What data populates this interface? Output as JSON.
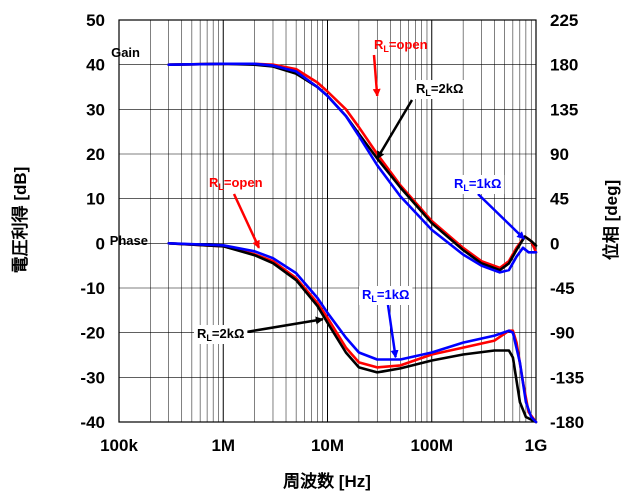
{
  "chart_data": {
    "type": "line",
    "title": "",
    "xlabel": "周波数 [Hz]",
    "ylabel_left": "電圧利得 [dB]",
    "ylabel_right": "位相 [deg]",
    "x_scale": "log",
    "xlim": [
      100000,
      1000000000
    ],
    "x_tick_labels": [
      "100k",
      "1M",
      "10M",
      "100M",
      "1G"
    ],
    "ylim_left": [
      -40,
      50
    ],
    "y_ticks_left": [
      "50",
      "40",
      "30",
      "20",
      "10",
      "0",
      "-10",
      "-20",
      "-30",
      "-40"
    ],
    "ylim_right": [
      -180,
      225
    ],
    "y_ticks_right": [
      "225",
      "180",
      "135",
      "90",
      "45",
      "0",
      "-45",
      "-90",
      "-135",
      "-180"
    ],
    "grid": true,
    "series": [
      {
        "group": "Gain",
        "axis": "left",
        "color": "#ff0000",
        "points": [
          [
            300000,
            40
          ],
          [
            1000000,
            40.2
          ],
          [
            2000000,
            40.2
          ],
          [
            3000000,
            40
          ],
          [
            5000000,
            39
          ],
          [
            8000000,
            36
          ],
          [
            10000000,
            34
          ],
          [
            15000000,
            30
          ],
          [
            20000000,
            26
          ],
          [
            30000000,
            20
          ],
          [
            50000000,
            13
          ],
          [
            100000000,
            5
          ],
          [
            200000000,
            -1
          ],
          [
            300000000,
            -4
          ],
          [
            450000000,
            -5.5
          ],
          [
            550000000,
            -4
          ],
          [
            650000000,
            -1
          ],
          [
            780000000,
            1.5
          ],
          [
            900000000,
            0.5
          ],
          [
            1000000000,
            -2
          ]
        ]
      },
      {
        "group": "Gain",
        "axis": "left",
        "color": "#000000",
        "points": [
          [
            300000,
            40
          ],
          [
            1000000,
            40.2
          ],
          [
            2000000,
            40
          ],
          [
            3000000,
            39.6
          ],
          [
            5000000,
            38
          ],
          [
            8000000,
            35
          ],
          [
            10000000,
            33
          ],
          [
            15000000,
            28.5
          ],
          [
            20000000,
            24.5
          ],
          [
            30000000,
            19
          ],
          [
            50000000,
            12.5
          ],
          [
            100000000,
            4.5
          ],
          [
            200000000,
            -1.5
          ],
          [
            300000000,
            -4.5
          ],
          [
            450000000,
            -6
          ],
          [
            550000000,
            -4.5
          ],
          [
            650000000,
            -1.5
          ],
          [
            780000000,
            1.5
          ],
          [
            900000000,
            0.5
          ],
          [
            1000000000,
            -0.5
          ]
        ]
      },
      {
        "group": "Gain",
        "axis": "left",
        "color": "#0000ff",
        "points": [
          [
            300000,
            40
          ],
          [
            1000000,
            40.2
          ],
          [
            2000000,
            40.2
          ],
          [
            3000000,
            39.8
          ],
          [
            5000000,
            38.5
          ],
          [
            8000000,
            35
          ],
          [
            10000000,
            33
          ],
          [
            15000000,
            28.5
          ],
          [
            20000000,
            24
          ],
          [
            30000000,
            17.5
          ],
          [
            50000000,
            10.5
          ],
          [
            100000000,
            3
          ],
          [
            200000000,
            -2.5
          ],
          [
            300000000,
            -5
          ],
          [
            450000000,
            -6.5
          ],
          [
            550000000,
            -6
          ],
          [
            650000000,
            -3
          ],
          [
            750000000,
            -1
          ],
          [
            850000000,
            -2
          ],
          [
            1000000000,
            -2
          ]
        ]
      },
      {
        "group": "Phase",
        "axis": "right",
        "color": "#ff0000",
        "points": [
          [
            300000,
            0
          ],
          [
            1000000,
            -3
          ],
          [
            2000000,
            -11
          ],
          [
            3000000,
            -18
          ],
          [
            5000000,
            -35
          ],
          [
            8000000,
            -60
          ],
          [
            10000000,
            -75
          ],
          [
            15000000,
            -105
          ],
          [
            20000000,
            -120
          ],
          [
            30000000,
            -125
          ],
          [
            50000000,
            -123
          ],
          [
            100000000,
            -112
          ],
          [
            200000000,
            -105
          ],
          [
            400000000,
            -98
          ],
          [
            550000000,
            -88
          ],
          [
            600000000,
            -88
          ],
          [
            650000000,
            -100
          ],
          [
            750000000,
            -140
          ],
          [
            850000000,
            -170
          ],
          [
            1000000000,
            -180
          ]
        ]
      },
      {
        "group": "Phase",
        "axis": "right",
        "color": "#000000",
        "points": [
          [
            300000,
            0
          ],
          [
            1000000,
            -3
          ],
          [
            2000000,
            -12
          ],
          [
            3000000,
            -20
          ],
          [
            5000000,
            -37
          ],
          [
            8000000,
            -63
          ],
          [
            10000000,
            -80
          ],
          [
            15000000,
            -110
          ],
          [
            20000000,
            -125
          ],
          [
            30000000,
            -130
          ],
          [
            50000000,
            -126
          ],
          [
            100000000,
            -118
          ],
          [
            200000000,
            -112
          ],
          [
            400000000,
            -108
          ],
          [
            550000000,
            -108
          ],
          [
            600000000,
            -115
          ],
          [
            700000000,
            -160
          ],
          [
            800000000,
            -175
          ],
          [
            1000000000,
            -180
          ]
        ]
      },
      {
        "group": "Phase",
        "axis": "right",
        "color": "#0000ff",
        "points": [
          [
            300000,
            0
          ],
          [
            1000000,
            -2
          ],
          [
            2000000,
            -8
          ],
          [
            3000000,
            -15
          ],
          [
            5000000,
            -30
          ],
          [
            8000000,
            -55
          ],
          [
            10000000,
            -70
          ],
          [
            15000000,
            -95
          ],
          [
            20000000,
            -110
          ],
          [
            30000000,
            -117
          ],
          [
            50000000,
            -117
          ],
          [
            100000000,
            -110
          ],
          [
            200000000,
            -100
          ],
          [
            400000000,
            -93
          ],
          [
            550000000,
            -88
          ],
          [
            600000000,
            -90
          ],
          [
            700000000,
            -120
          ],
          [
            800000000,
            -160
          ],
          [
            900000000,
            -175
          ],
          [
            1000000000,
            -180
          ]
        ]
      }
    ],
    "annotations": [
      {
        "text": "Gain",
        "color": "#000000"
      },
      {
        "text": "Phase",
        "color": "#000000"
      },
      {
        "text": "RL=open",
        "color": "#ff0000",
        "target": [
          30000000,
          33
        ]
      },
      {
        "text": "RL=2kΩ",
        "color": "#000000",
        "target": [
          30000000,
          19
        ]
      },
      {
        "text": "RL=open",
        "color": "#ff0000",
        "target": [
          2200000,
          -1
        ]
      },
      {
        "text": "RL=1kΩ",
        "color": "#0000ff",
        "target": [
          770000000,
          1
        ]
      },
      {
        "text": "RL=1kΩ",
        "color": "#0000ff",
        "target": [
          45000000,
          -25.5
        ]
      },
      {
        "text": "RL=2kΩ",
        "color": "#000000",
        "target": [
          9000000,
          -17
        ]
      }
    ]
  }
}
